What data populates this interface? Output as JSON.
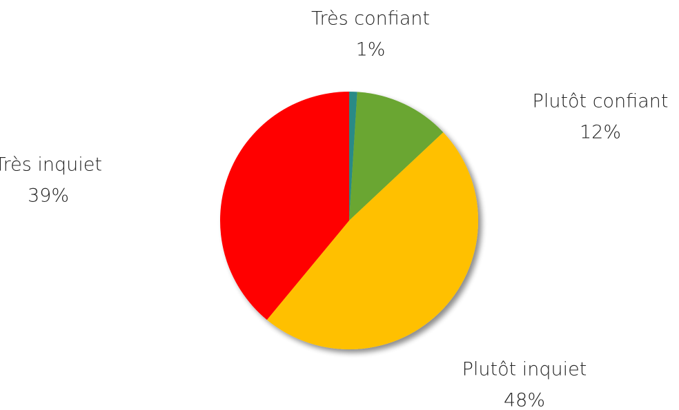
{
  "chart_data": {
    "type": "pie",
    "categories": [
      "Très confiant",
      "Plutôt confiant",
      "Plutôt inquiet",
      "Très inquiet"
    ],
    "values": [
      1,
      12,
      48,
      39
    ],
    "value_labels": [
      "1%",
      "12%",
      "48%",
      "39%"
    ],
    "colors": [
      "#2a8a86",
      "#6aa632",
      "#ffc000",
      "#ff0000"
    ]
  }
}
